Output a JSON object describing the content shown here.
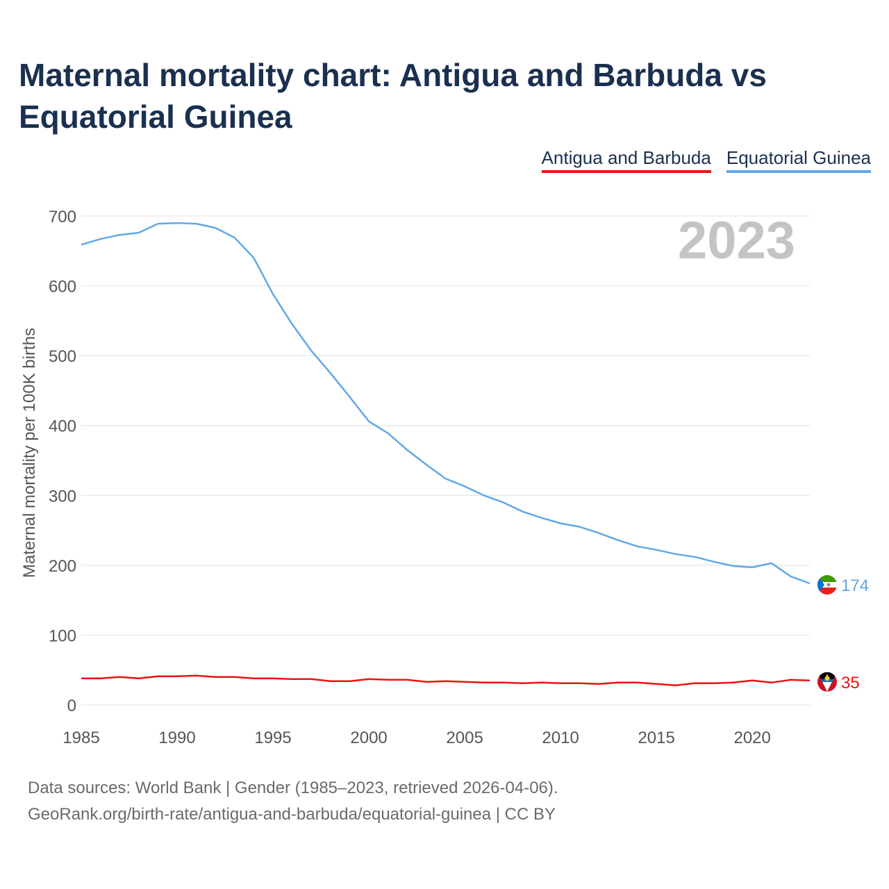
{
  "title": "Maternal mortality chart: Antigua and Barbuda vs Equatorial Guinea",
  "legend": {
    "series_a": "Antigua and Barbuda",
    "series_b": "Equatorial Guinea"
  },
  "colors": {
    "antigua": "#ee1111",
    "equatorial_guinea": "#5fa8e8"
  },
  "footer": {
    "line1": "Data sources: World Bank | Gender (1985–2023, retrieved 2026-04-06).",
    "line2": "GeoRank.org/birth-rate/antigua-and-barbuda/equatorial-guinea | CC BY"
  },
  "chart_data": {
    "type": "line",
    "title": "Maternal mortality chart: Antigua and Barbuda vs Equatorial Guinea",
    "xlabel": "",
    "ylabel": "Maternal mortality per 100K births",
    "year_watermark": "2023",
    "xlim": [
      1985,
      2023
    ],
    "ylim": [
      0,
      700
    ],
    "x_ticks": [
      1985,
      1990,
      1995,
      2000,
      2005,
      2010,
      2015,
      2020
    ],
    "y_ticks": [
      0,
      100,
      200,
      300,
      400,
      500,
      600,
      700
    ],
    "x": [
      1985,
      1986,
      1987,
      1988,
      1989,
      1990,
      1991,
      1992,
      1993,
      1994,
      1995,
      1996,
      1997,
      1998,
      1999,
      2000,
      2001,
      2002,
      2003,
      2004,
      2005,
      2006,
      2007,
      2008,
      2009,
      2010,
      2011,
      2012,
      2013,
      2014,
      2015,
      2016,
      2017,
      2018,
      2019,
      2020,
      2021,
      2022,
      2023
    ],
    "series": [
      {
        "name": "Equatorial Guinea",
        "color": "#5fa8e8",
        "end_label": "174",
        "values": [
          659,
          667,
          673,
          676,
          689,
          690,
          689,
          683,
          669,
          640,
          588,
          545,
          507,
          475,
          441,
          406,
          389,
          365,
          344,
          324,
          313,
          300,
          290,
          277,
          268,
          260,
          255,
          246,
          236,
          227,
          222,
          216,
          212,
          205,
          199,
          197,
          203,
          184,
          174
        ]
      },
      {
        "name": "Antigua and Barbuda",
        "color": "#ee1111",
        "end_label": "35",
        "values": [
          38,
          38,
          40,
          38,
          41,
          41,
          42,
          40,
          40,
          38,
          38,
          37,
          37,
          34,
          34,
          37,
          36,
          36,
          33,
          34,
          33,
          32,
          32,
          31,
          32,
          31,
          31,
          30,
          32,
          32,
          30,
          28,
          31,
          31,
          32,
          35,
          32,
          36,
          35
        ]
      }
    ]
  }
}
